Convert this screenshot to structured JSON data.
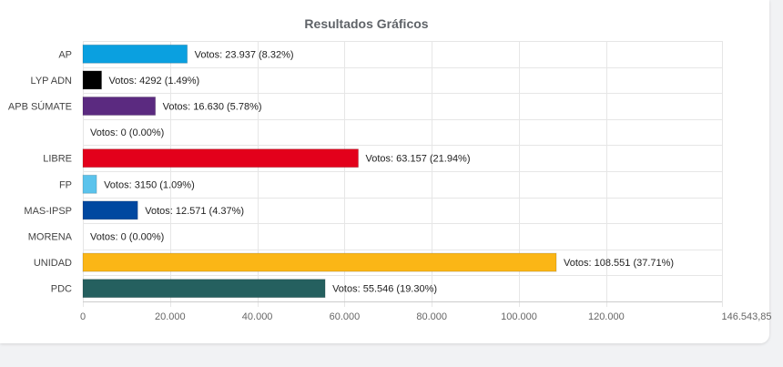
{
  "chart_data": {
    "type": "bar",
    "orientation": "horizontal",
    "title": "Resultados Gráficos",
    "categories": [
      "AP",
      "LYP ADN",
      "APB SÚMATE",
      "",
      "LIBRE",
      "FP",
      "MAS-IPSP",
      "MORENA",
      "UNIDAD",
      "PDC"
    ],
    "values": [
      23937,
      4292,
      16630,
      0,
      63157,
      3150,
      12571,
      0,
      108551,
      55546
    ],
    "data_labels": [
      "Votos: 23.937 (8.32%)",
      "Votos: 4292 (1.49%)",
      "Votos: 16.630 (5.78%)",
      "Votos: 0 (0.00%)",
      "Votos: 63.157 (21.94%)",
      "Votos: 3150 (1.09%)",
      "Votos: 12.571 (4.37%)",
      "Votos: 0 (0.00%)",
      "Votos: 108.551 (37.71%)",
      "Votos: 55.546 (19.30%)"
    ],
    "colors": [
      "#0aa0e0",
      "#000000",
      "#5b2a80",
      "#cccccc",
      "#e3001b",
      "#5bc3ec",
      "#0048a0",
      "#8a2a2a",
      "#fbb616",
      "#25605f"
    ],
    "xlim": [
      0,
      146543.85
    ],
    "x_ticks": [
      0,
      20000,
      40000,
      60000,
      80000,
      100000,
      120000,
      146543.85
    ],
    "x_tick_labels": [
      "0",
      "20.000",
      "40.000",
      "60.000",
      "80.000",
      "100.000",
      "120.000",
      "146.543,85"
    ],
    "xlabel": "",
    "ylabel": "",
    "grid": true,
    "legend": "none"
  }
}
